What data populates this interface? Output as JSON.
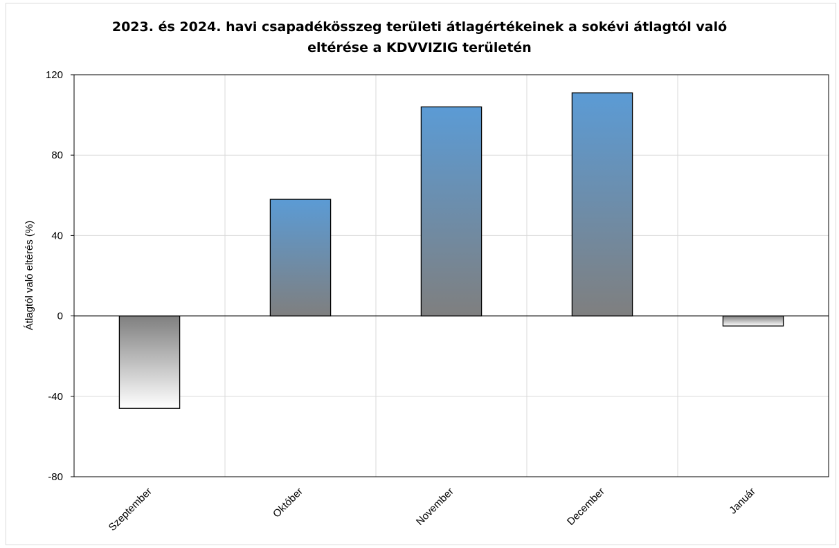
{
  "chart_data": {
    "type": "bar",
    "title_lines": [
      "2023. és 2024. havi csapadékösszeg területi átlagértékeinek a sokévi átlagtól való",
      "eltérése a KDVVIZIG területén"
    ],
    "xlabel": "",
    "ylabel": "Átlagtól való eltérés (%)",
    "categories": [
      "Szeptember",
      "Október",
      "November",
      "December",
      "Január"
    ],
    "values": [
      -46,
      58,
      104,
      111,
      -5
    ],
    "ylim": [
      -80,
      120
    ],
    "yticks": [
      120,
      80,
      40,
      0,
      -40,
      -80
    ],
    "grid": true,
    "legend": "none",
    "colors": {
      "positive_top": "#5b9bd5",
      "positive_bottom": "#7f7f7f",
      "negative_top": "#7f7f7f",
      "negative_bottom": "#ffffff",
      "bar_stroke": "#000000",
      "gridline": "#d9d9d9"
    }
  }
}
